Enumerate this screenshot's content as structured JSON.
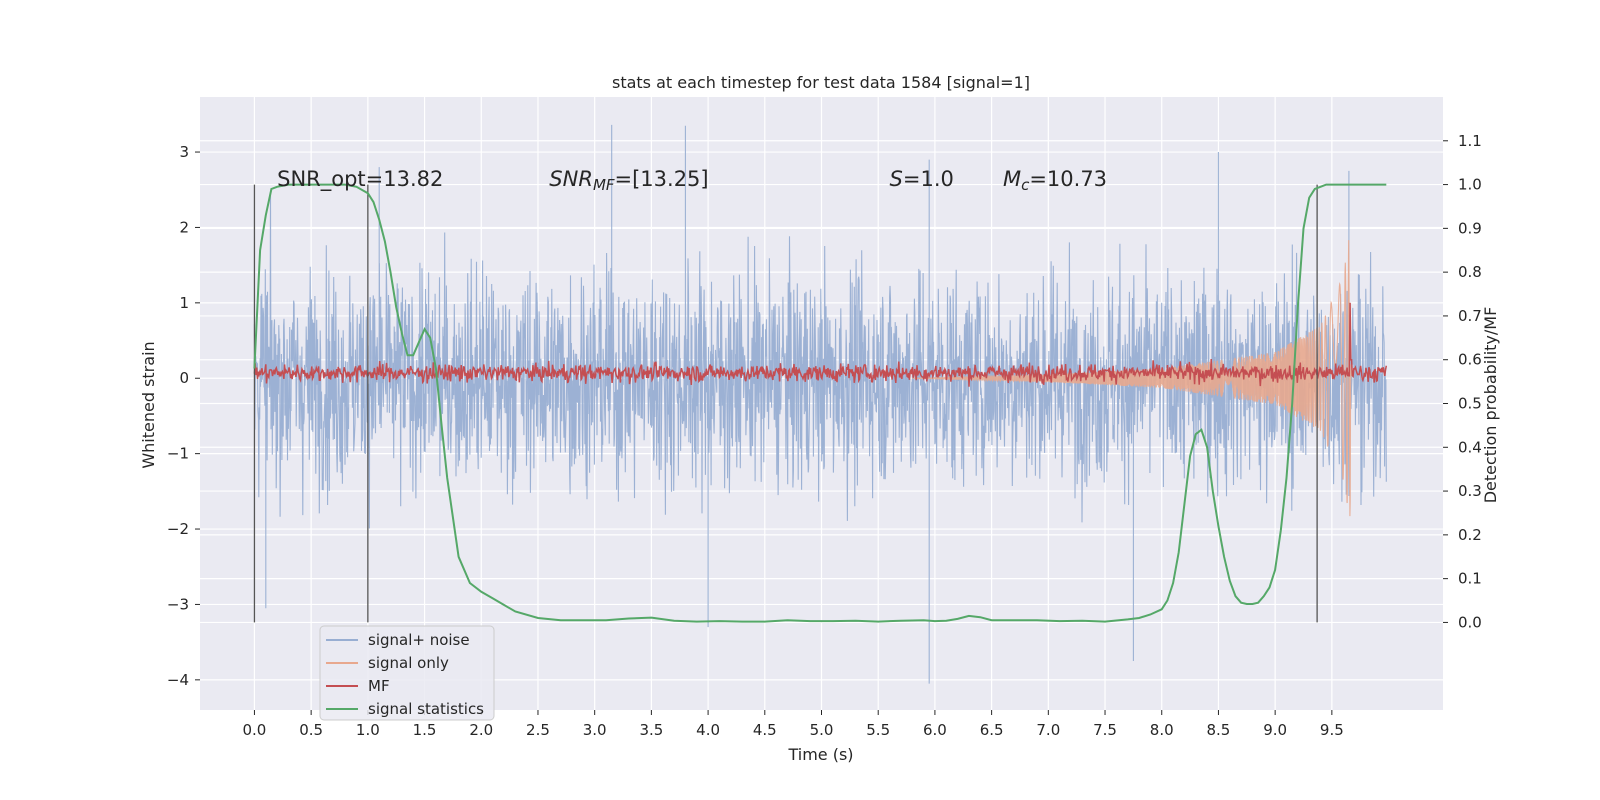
{
  "chart_data": {
    "type": "line",
    "title": "stats at each timestep for test data 1584 [signal=1]",
    "xlabel": "Time (s)",
    "ylabel": "Whitened strain",
    "y2label": "Detection probability/MF",
    "xlim": [
      -0.48,
      10.48
    ],
    "ylim": [
      -4.4,
      3.73
    ],
    "y2lim": [
      -0.2,
      1.2
    ],
    "xticks": [
      0.0,
      0.5,
      1.0,
      1.5,
      2.0,
      2.5,
      3.0,
      3.5,
      4.0,
      4.5,
      5.0,
      5.5,
      6.0,
      6.5,
      7.0,
      7.5,
      8.0,
      8.5,
      9.0,
      9.5
    ],
    "xtick_labels": [
      "0.0",
      "0.5",
      "1.0",
      "1.5",
      "2.0",
      "2.5",
      "3.0",
      "3.5",
      "4.0",
      "4.5",
      "5.0",
      "5.5",
      "6.0",
      "6.5",
      "7.0",
      "7.5",
      "8.0",
      "8.5",
      "9.0",
      "9.5"
    ],
    "yticks": [
      3,
      2,
      1,
      0,
      -1,
      -2,
      -3,
      -4
    ],
    "ytick_labels": [
      "3",
      "2",
      "1",
      "0",
      "−1",
      "−2",
      "−3",
      "−4"
    ],
    "y2ticks": [
      1.1,
      1.0,
      0.9,
      0.8,
      0.7,
      0.6,
      0.5,
      0.4,
      0.3,
      0.2,
      0.1,
      0.0
    ],
    "y2tick_labels": [
      "1.1",
      "1.0",
      "0.9",
      "0.8",
      "0.7",
      "0.6",
      "0.5",
      "0.4",
      "0.3",
      "0.2",
      "0.1",
      "0.0"
    ],
    "grid": true,
    "legend_position": "lower-left",
    "colors": {
      "background": "#eaeaf2",
      "grid": "#ffffff",
      "signal_noise": "#98aed2",
      "signal_only": "#e8a88e",
      "mf": "#c44e52",
      "stats": "#55a868",
      "vlines": "#555555"
    },
    "annotations": [
      {
        "text": "SNR_opt=13.82",
        "x": 0.2,
        "y": 2.55
      },
      {
        "text": "SNR_MF=[13.25]",
        "x": 2.6,
        "y": 2.55
      },
      {
        "text": "S=1.0",
        "x": 5.6,
        "y": 2.55
      },
      {
        "text": "M_c=10.73",
        "x": 6.6,
        "y": 2.55
      }
    ],
    "vertical_markers_x": [
      0.0,
      1.0,
      9.37
    ],
    "series": [
      {
        "name": "signal+ noise",
        "axis": "left",
        "kind": "noise",
        "x_range": [
          0.0,
          9.98
        ],
        "std": 0.9,
        "envelope_y": [
          -2.6,
          2.8
        ],
        "extremes": [
          [
            0.1,
            -3.05
          ],
          [
            1.1,
            2.8
          ],
          [
            3.15,
            3.36
          ],
          [
            3.8,
            3.35
          ],
          [
            4.0,
            -3.3
          ],
          [
            5.95,
            -4.05
          ],
          [
            5.95,
            2.9
          ],
          [
            7.75,
            -3.75
          ],
          [
            8.5,
            3.0
          ],
          [
            9.65,
            2.75
          ]
        ]
      },
      {
        "name": "signal only",
        "axis": "left",
        "kind": "chirp",
        "x_range": [
          5.8,
          9.67
        ],
        "amplitude_at": [
          [
            5.8,
            0.0
          ],
          [
            7.0,
            0.05
          ],
          [
            8.0,
            0.13
          ],
          [
            9.0,
            0.35
          ],
          [
            9.4,
            0.7
          ],
          [
            9.6,
            1.35
          ],
          [
            9.66,
            1.95
          ],
          [
            9.67,
            0.0
          ]
        ]
      },
      {
        "name": "MF",
        "axis": "right",
        "kind": "noisy-baseline",
        "x_range": [
          0.0,
          9.98
        ],
        "baseline": 0.57,
        "noise": 0.01,
        "spikes": [
          [
            9.66,
            0.73
          ],
          [
            9.67,
            0.6
          ]
        ]
      },
      {
        "name": "signal statistics",
        "axis": "right",
        "kind": "line",
        "x": [
          0.0,
          0.05,
          0.1,
          0.15,
          0.2,
          0.3,
          0.4,
          0.5,
          0.6,
          0.7,
          0.8,
          0.9,
          1.0,
          1.05,
          1.1,
          1.15,
          1.2,
          1.25,
          1.3,
          1.35,
          1.4,
          1.45,
          1.5,
          1.55,
          1.6,
          1.65,
          1.7,
          1.75,
          1.8,
          1.9,
          2.0,
          2.1,
          2.2,
          2.3,
          2.5,
          2.7,
          2.9,
          3.1,
          3.3,
          3.5,
          3.7,
          3.9,
          4.1,
          4.3,
          4.5,
          4.7,
          4.9,
          5.1,
          5.3,
          5.5,
          5.7,
          5.9,
          6.0,
          6.1,
          6.2,
          6.3,
          6.4,
          6.5,
          6.7,
          6.9,
          7.1,
          7.3,
          7.5,
          7.7,
          7.8,
          7.9,
          8.0,
          8.05,
          8.1,
          8.15,
          8.2,
          8.25,
          8.3,
          8.35,
          8.4,
          8.45,
          8.5,
          8.55,
          8.6,
          8.65,
          8.7,
          8.75,
          8.8,
          8.85,
          8.9,
          8.95,
          9.0,
          9.05,
          9.1,
          9.15,
          9.2,
          9.25,
          9.3,
          9.35,
          9.4,
          9.45,
          9.5,
          9.6,
          9.7,
          9.8,
          9.9,
          9.98
        ],
        "y": [
          0.58,
          0.85,
          0.93,
          0.99,
          0.995,
          1.0,
          1.0,
          1.0,
          1.0,
          1.0,
          1.0,
          0.995,
          0.98,
          0.96,
          0.92,
          0.87,
          0.8,
          0.72,
          0.66,
          0.61,
          0.61,
          0.64,
          0.67,
          0.65,
          0.58,
          0.45,
          0.33,
          0.24,
          0.15,
          0.09,
          0.07,
          0.055,
          0.04,
          0.025,
          0.01,
          0.005,
          0.005,
          0.005,
          0.009,
          0.011,
          0.004,
          0.002,
          0.003,
          0.002,
          0.002,
          0.005,
          0.003,
          0.003,
          0.004,
          0.002,
          0.004,
          0.005,
          0.003,
          0.004,
          0.008,
          0.015,
          0.012,
          0.005,
          0.005,
          0.005,
          0.003,
          0.004,
          0.002,
          0.007,
          0.01,
          0.018,
          0.03,
          0.05,
          0.09,
          0.16,
          0.27,
          0.38,
          0.43,
          0.44,
          0.4,
          0.3,
          0.22,
          0.15,
          0.095,
          0.06,
          0.045,
          0.042,
          0.042,
          0.045,
          0.06,
          0.08,
          0.12,
          0.21,
          0.33,
          0.5,
          0.72,
          0.9,
          0.97,
          0.99,
          0.995,
          1.0,
          1.0,
          1.0,
          1.0,
          1.0,
          1.0,
          1.0
        ]
      }
    ]
  }
}
